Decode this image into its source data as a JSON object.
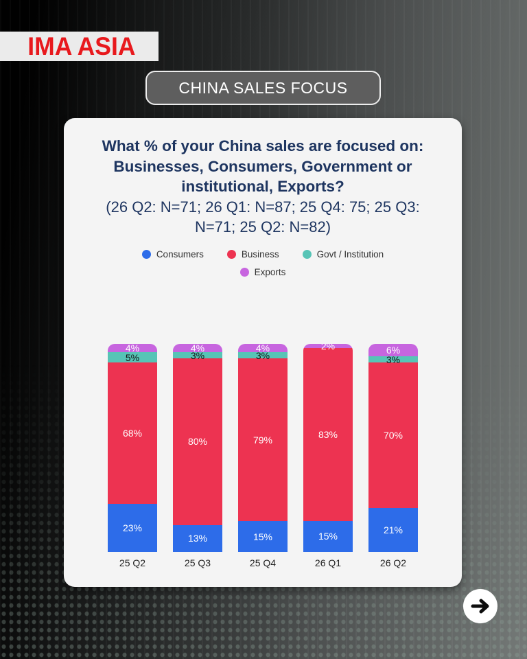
{
  "brand": {
    "logo_text": "IMA ASIA",
    "logo_color": "#e8191d"
  },
  "header": {
    "pill_label": "CHINA SALES FOCUS"
  },
  "card": {
    "title": "What % of your China sales are focused on: Businesses, Consumers, Government or institutional, Exports?",
    "subtitle": "(26 Q2: N=71; 26 Q1: N=87; 25 Q4: 75; 25 Q3: N=71; 25 Q2: N=82)"
  },
  "colors": {
    "heading_navy": "#1e3560",
    "card_background": "#f4f4f4"
  },
  "chart_data": {
    "type": "bar",
    "stacked": true,
    "categories": [
      "25 Q2",
      "25 Q3",
      "25 Q4",
      "26 Q1",
      "26 Q2"
    ],
    "series": [
      {
        "name": "Consumers",
        "color": "#2d6ce9",
        "label_color": "#ffffff",
        "values": [
          23,
          13,
          15,
          15,
          21
        ]
      },
      {
        "name": "Business",
        "color": "#ed3351",
        "label_color": "#ffffff",
        "values": [
          68,
          80,
          79,
          83,
          70
        ]
      },
      {
        "name": "Govt / Institution",
        "color": "#57c4b6",
        "label_color": "#141414",
        "values": [
          5,
          3,
          3,
          0,
          3
        ]
      },
      {
        "name": "Exports",
        "color": "#c765df",
        "label_color": "#ffffff",
        "values": [
          4,
          4,
          4,
          2,
          6
        ]
      }
    ],
    "value_suffix": "%",
    "ylim": [
      0,
      100
    ],
    "grid": false,
    "legend_position": "top",
    "legend_rows": [
      [
        "Consumers",
        "Business",
        "Govt / Institution"
      ],
      [
        "Exports"
      ]
    ]
  },
  "footer": {
    "next_button_icon": "arrow-right"
  }
}
